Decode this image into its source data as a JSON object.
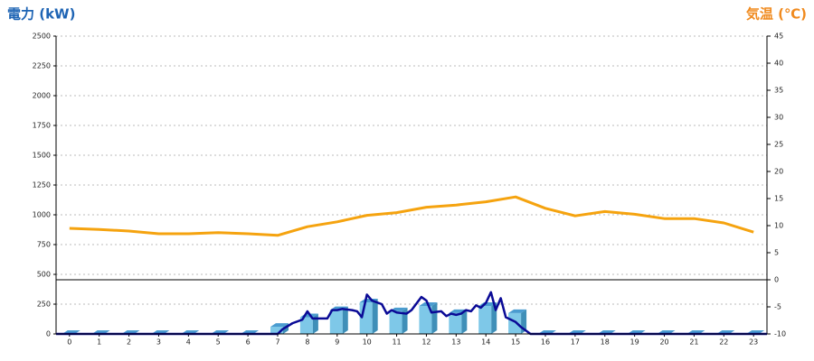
{
  "chart_data": {
    "type": "combo",
    "title_left": "電力 (kW)",
    "title_right": "気温 (℃)",
    "xlim": [
      -0.45,
      23.45
    ],
    "xticks": [
      0,
      1,
      2,
      3,
      4,
      5,
      6,
      7,
      8,
      9,
      10,
      11,
      12,
      13,
      14,
      15,
      16,
      17,
      18,
      19,
      20,
      21,
      22,
      23
    ],
    "ylim": [
      0,
      2500
    ],
    "yticks": [
      0,
      250,
      500,
      750,
      1000,
      1250,
      1500,
      1750,
      2000,
      2250,
      2500
    ],
    "y2lim": [
      -10,
      45
    ],
    "y2ticks": [
      -10,
      -5,
      0,
      5,
      10,
      15,
      20,
      25,
      30,
      35,
      40,
      45
    ],
    "grid": true,
    "series": [
      {
        "type": "bar",
        "color": "#7ec8e8",
        "x": [
          0,
          1,
          2,
          3,
          4,
          5,
          6,
          7,
          8,
          9,
          10,
          11,
          12,
          13,
          14,
          15,
          16,
          17,
          18,
          19,
          20,
          21,
          22,
          23
        ],
        "values": [
          0,
          0,
          0,
          0,
          0,
          0,
          0,
          60,
          140,
          200,
          265,
          190,
          235,
          175,
          235,
          175,
          0,
          0,
          0,
          0,
          0,
          0,
          0,
          0
        ]
      },
      {
        "type": "line",
        "color": "#0a0a96",
        "x": [
          -0.45,
          7,
          7.17,
          7.5,
          7.83,
          8,
          8.17,
          8.5,
          8.67,
          8.83,
          9,
          9.17,
          9.5,
          9.67,
          9.83,
          10,
          10.17,
          10.5,
          10.67,
          10.83,
          11,
          11.33,
          11.5,
          11.83,
          12,
          12.17,
          12.5,
          12.67,
          12.83,
          13,
          13.17,
          13.33,
          13.5,
          13.67,
          13.83,
          14,
          14.17,
          14.33,
          14.5,
          14.67,
          15,
          15.17,
          15.5,
          23.45
        ],
        "values": [
          0,
          0,
          40,
          90,
          120,
          190,
          130,
          130,
          130,
          200,
          200,
          210,
          200,
          190,
          140,
          330,
          280,
          250,
          170,
          200,
          180,
          170,
          200,
          310,
          280,
          180,
          190,
          150,
          170,
          160,
          170,
          200,
          190,
          240,
          220,
          260,
          350,
          200,
          300,
          140,
          100,
          60,
          0,
          0
        ]
      },
      {
        "type": "line",
        "axis": "y2",
        "color": "#f5a30f",
        "x": [
          0,
          1,
          2,
          3,
          4,
          5,
          6,
          7,
          8,
          9,
          10,
          11,
          12,
          13,
          14,
          15,
          16,
          17,
          18,
          19,
          20,
          21,
          22,
          23
        ],
        "values": [
          9.5,
          9.3,
          9,
          8.5,
          8.5,
          8.7,
          8.5,
          8.2,
          9.8,
          10.7,
          11.9,
          12.4,
          13.4,
          13.8,
          14.4,
          15.3,
          13.2,
          11.8,
          12.6,
          12.1,
          11.3,
          11.3,
          10.5,
          8.8
        ]
      }
    ]
  }
}
